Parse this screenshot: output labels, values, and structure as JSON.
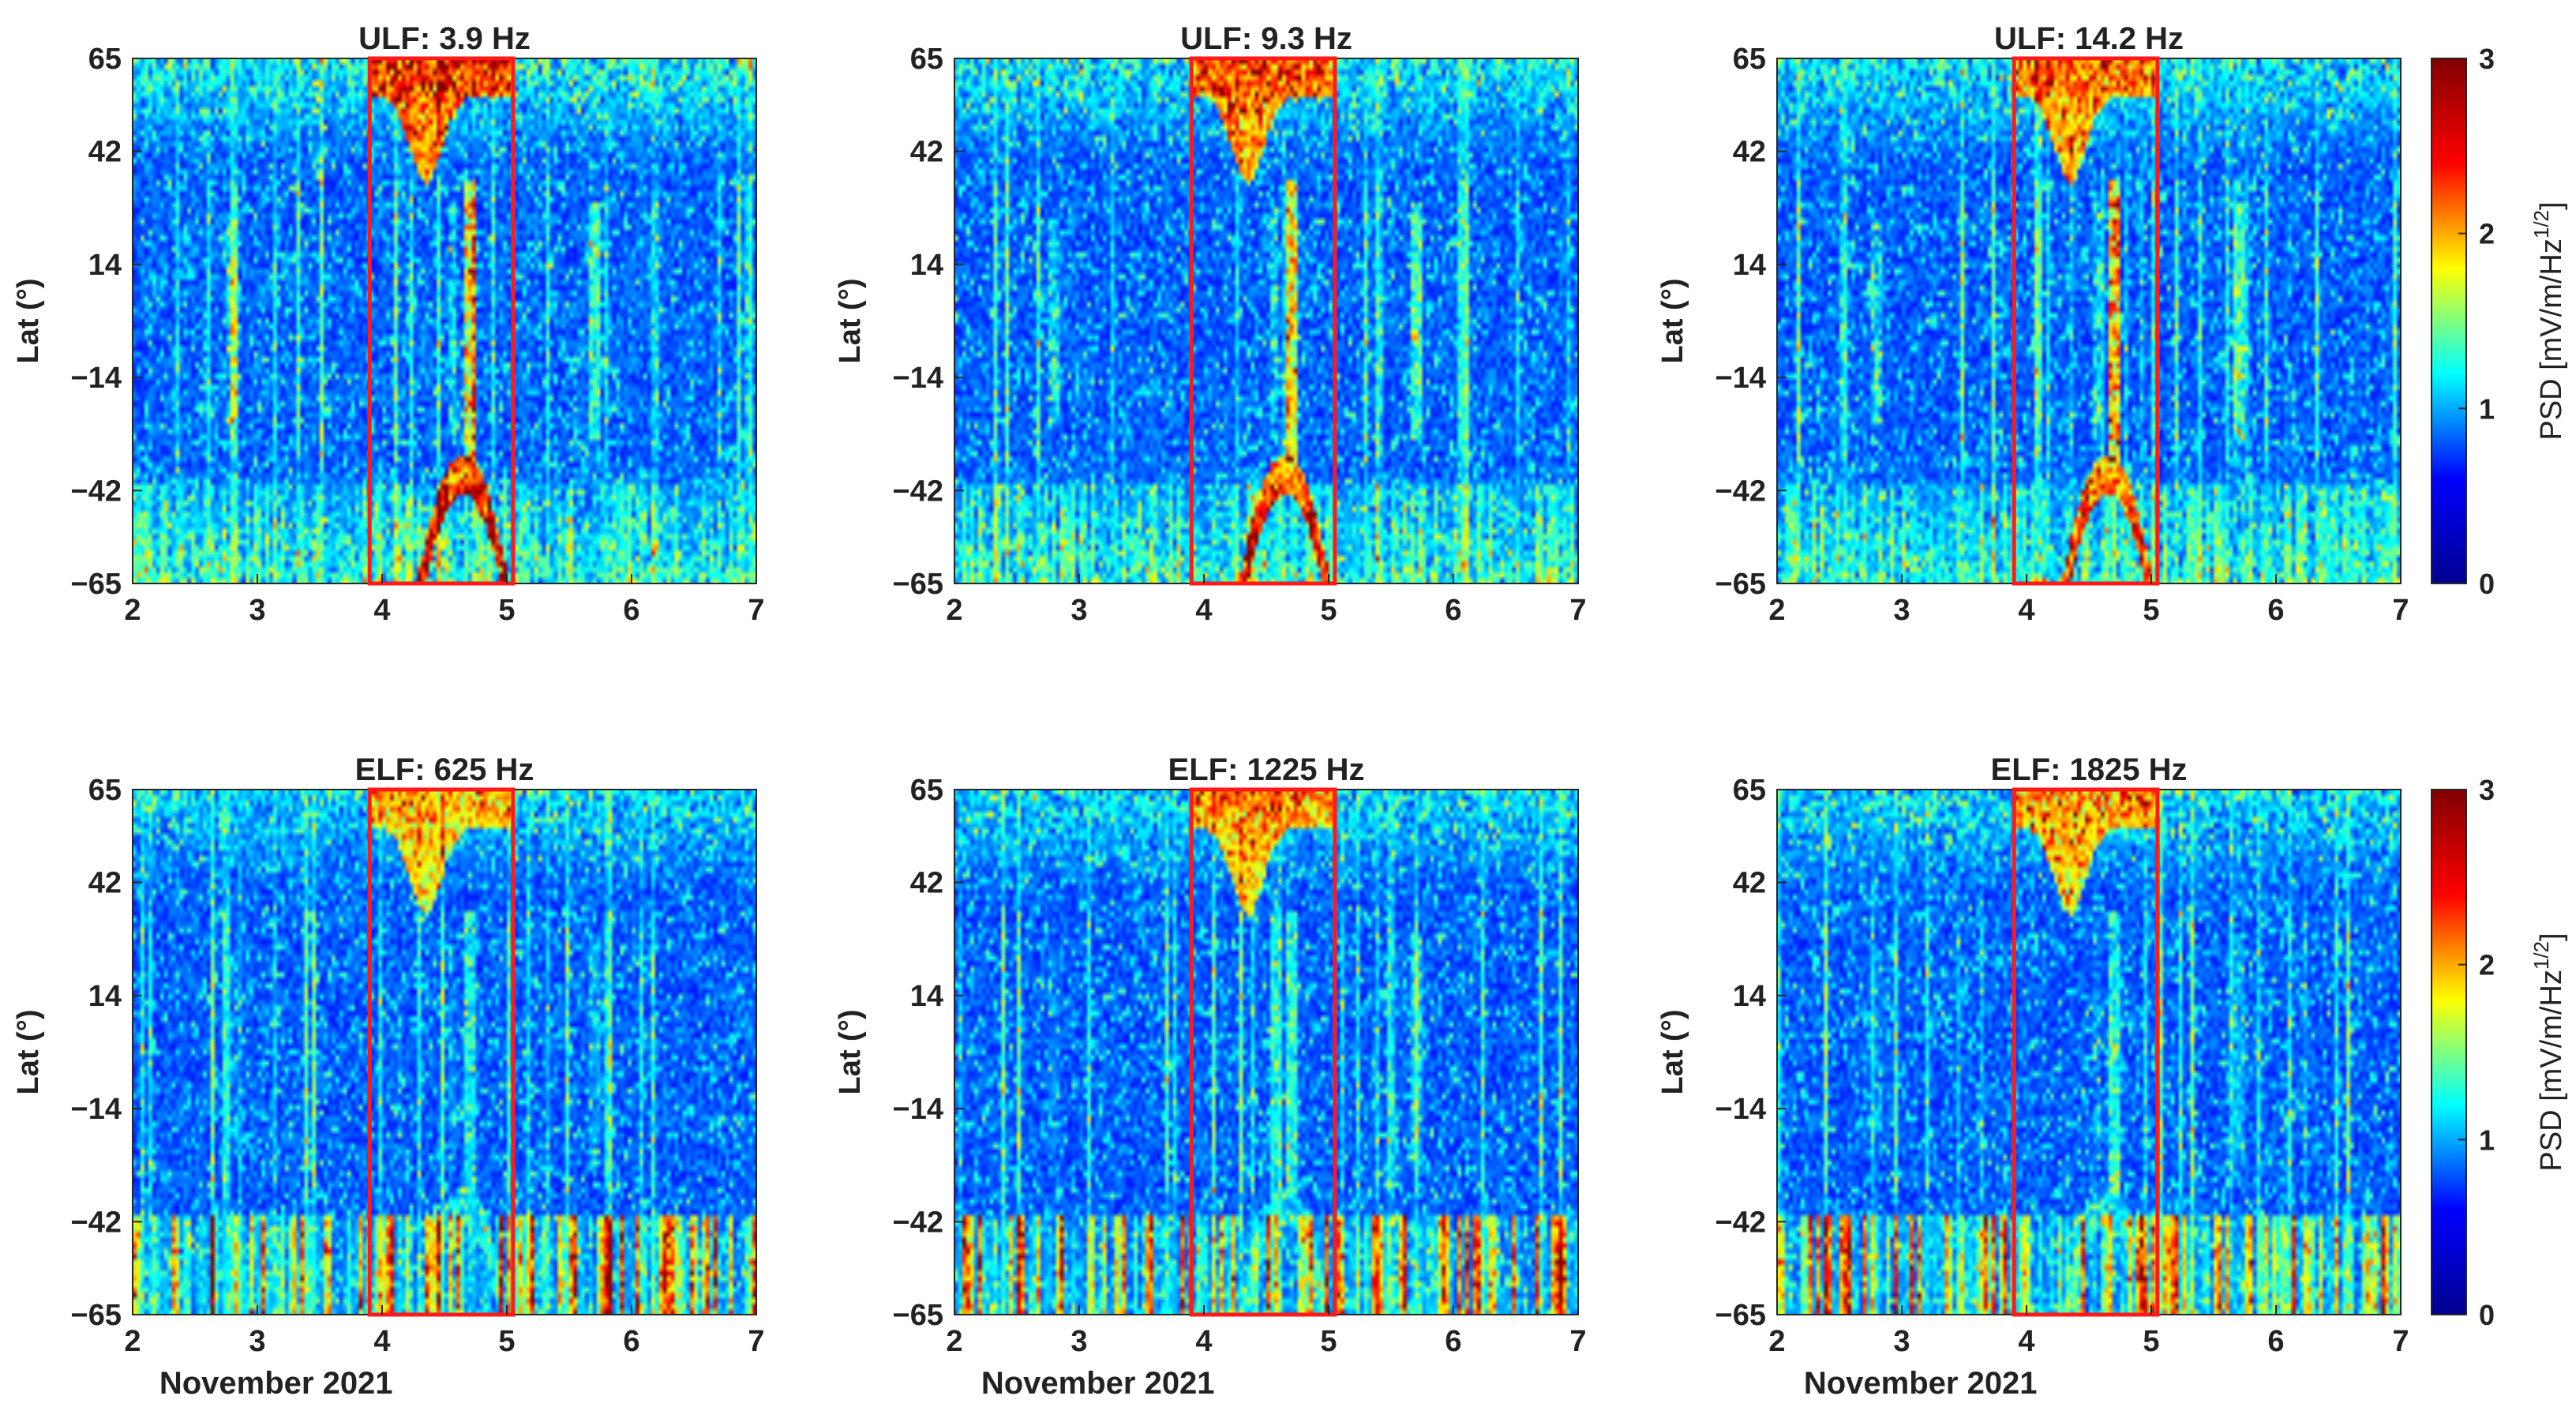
{
  "figure": {
    "colorbar": {
      "label": "PSD [mV/m/Hz",
      "label_exponent": "1/2",
      "label_suffix": "]",
      "min": 0,
      "max": 3,
      "ticks": [
        "0",
        "1",
        "2",
        "3"
      ],
      "colormap": "jet",
      "colormap_stops": [
        "#00008f",
        "#0000ff",
        "#00ffff",
        "#ffff00",
        "#ff0000",
        "#800000"
      ]
    },
    "highlight_color": "#ff1a1a"
  },
  "chart_data": [
    {
      "type": "heatmap",
      "title": "ULF: 3.9 Hz",
      "xlabel": "",
      "ylabel": "Lat (°)",
      "x_ticks": [
        "2",
        "3",
        "4",
        "5",
        "6",
        "7"
      ],
      "xlim": [
        2,
        7
      ],
      "y_ticks": [
        "65",
        "42",
        "14",
        "-14",
        "-42",
        "-65"
      ],
      "ylim": [
        -65,
        65
      ],
      "highlight_box": {
        "x": [
          3.9,
          5.05
        ],
        "y": [
          -65,
          65
        ]
      },
      "seed": 11,
      "activity": {
        "north_oval": 1.7,
        "south_oval": 1.7,
        "equatorial": 1.3,
        "south_columns": 0.6,
        "background": 0.95
      }
    },
    {
      "type": "heatmap",
      "title": "ULF: 9.3 Hz",
      "xlabel": "",
      "ylabel": "Lat (°)",
      "x_ticks": [
        "2",
        "3",
        "4",
        "5",
        "6",
        "7"
      ],
      "xlim": [
        2,
        7
      ],
      "y_ticks": [
        "65",
        "42",
        "14",
        "-14",
        "-42",
        "-65"
      ],
      "ylim": [
        -65,
        65
      ],
      "highlight_box": {
        "x": [
          3.9,
          5.05
        ],
        "y": [
          -65,
          65
        ]
      },
      "seed": 23,
      "activity": {
        "north_oval": 1.6,
        "south_oval": 1.6,
        "equatorial": 1.3,
        "south_columns": 0.6,
        "background": 0.9
      }
    },
    {
      "type": "heatmap",
      "title": "ULF: 14.2 Hz",
      "xlabel": "",
      "ylabel": "Lat (°)",
      "x_ticks": [
        "2",
        "3",
        "4",
        "5",
        "6",
        "7"
      ],
      "xlim": [
        2,
        7
      ],
      "y_ticks": [
        "65",
        "42",
        "14",
        "-14",
        "-42",
        "-65"
      ],
      "ylim": [
        -65,
        65
      ],
      "highlight_box": {
        "x": [
          3.9,
          5.05
        ],
        "y": [
          -65,
          65
        ]
      },
      "seed": 37,
      "activity": {
        "north_oval": 1.5,
        "south_oval": 1.5,
        "equatorial": 1.5,
        "south_columns": 0.6,
        "background": 0.9
      }
    },
    {
      "type": "heatmap",
      "title": "ELF: 625 Hz",
      "xlabel": "November 2021",
      "ylabel": "Lat (°)",
      "x_ticks": [
        "2",
        "3",
        "4",
        "5",
        "6",
        "7"
      ],
      "xlim": [
        2,
        7
      ],
      "y_ticks": [
        "65",
        "42",
        "14",
        "-14",
        "-42",
        "-65"
      ],
      "ylim": [
        -65,
        65
      ],
      "highlight_box": {
        "x": [
          3.9,
          5.05
        ],
        "y": [
          -65,
          65
        ]
      },
      "seed": 41,
      "activity": {
        "north_oval": 1.3,
        "south_oval": 0.4,
        "equatorial": 0.5,
        "south_columns": 2.0,
        "background": 0.85
      }
    },
    {
      "type": "heatmap",
      "title": "ELF: 1225 Hz",
      "xlabel": "November 2021",
      "ylabel": "Lat (°)",
      "x_ticks": [
        "2",
        "3",
        "4",
        "5",
        "6",
        "7"
      ],
      "xlim": [
        2,
        7
      ],
      "y_ticks": [
        "65",
        "42",
        "14",
        "-14",
        "-42",
        "-65"
      ],
      "ylim": [
        -65,
        65
      ],
      "highlight_box": {
        "x": [
          3.9,
          5.05
        ],
        "y": [
          -65,
          65
        ]
      },
      "seed": 53,
      "activity": {
        "north_oval": 1.4,
        "south_oval": 0.4,
        "equatorial": 0.6,
        "south_columns": 1.9,
        "background": 0.85
      }
    },
    {
      "type": "heatmap",
      "title": "ELF: 1825 Hz",
      "xlabel": "November 2021",
      "ylabel": "Lat (°)",
      "x_ticks": [
        "2",
        "3",
        "4",
        "5",
        "6",
        "7"
      ],
      "xlim": [
        2,
        7
      ],
      "y_ticks": [
        "65",
        "42",
        "14",
        "-14",
        "-42",
        "-65"
      ],
      "ylim": [
        -65,
        65
      ],
      "highlight_box": {
        "x": [
          3.9,
          5.05
        ],
        "y": [
          -65,
          65
        ]
      },
      "seed": 67,
      "activity": {
        "north_oval": 1.4,
        "south_oval": 0.4,
        "equatorial": 0.6,
        "south_columns": 1.9,
        "background": 0.85
      }
    }
  ]
}
